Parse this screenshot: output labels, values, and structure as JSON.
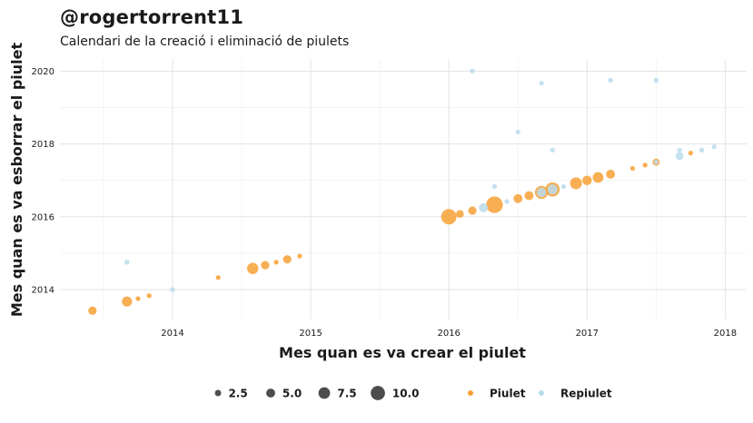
{
  "header": {
    "title": "@rogertorrent11",
    "subtitle": "Calendari de la creació i eliminació de piulets"
  },
  "colors": {
    "piulet": "#f7a035",
    "repiulet": "#b9dceb",
    "grid": "#e3e3e3",
    "size_legend": "#3a3a3a"
  },
  "chart_data": {
    "type": "scatter",
    "xlabel": "Mes quan es va crear el piulet",
    "ylabel": "Mes quan es va esborrar el piulet",
    "xlim": [
      2013.3,
      2018.15
    ],
    "ylim": [
      2013.3,
      2020.3
    ],
    "xticks": [
      2014,
      2015,
      2016,
      2017,
      2018
    ],
    "yticks": [
      2014,
      2016,
      2018,
      2020
    ],
    "grid": true,
    "legend_position": "bottom",
    "size_legend": {
      "title": "",
      "values": [
        2.5,
        5.0,
        7.5,
        10.0
      ],
      "labels": [
        "2.5",
        "5.0",
        "7.5",
        "10.0"
      ]
    },
    "series": [
      {
        "name": "Piulet",
        "color": "#f7a035",
        "points": [
          {
            "x": 2013.42,
            "y": 2013.42,
            "size": 4
          },
          {
            "x": 2013.67,
            "y": 2013.67,
            "size": 5.5
          },
          {
            "x": 2013.75,
            "y": 2013.75,
            "size": 1
          },
          {
            "x": 2013.83,
            "y": 2013.83,
            "size": 1
          },
          {
            "x": 2014.33,
            "y": 2014.33,
            "size": 1
          },
          {
            "x": 2014.58,
            "y": 2014.58,
            "size": 6.5
          },
          {
            "x": 2014.67,
            "y": 2014.67,
            "size": 4
          },
          {
            "x": 2014.75,
            "y": 2014.75,
            "size": 1
          },
          {
            "x": 2014.83,
            "y": 2014.83,
            "size": 4
          },
          {
            "x": 2014.92,
            "y": 2014.92,
            "size": 1
          },
          {
            "x": 2016.0,
            "y": 2016.0,
            "size": 10
          },
          {
            "x": 2016.08,
            "y": 2016.08,
            "size": 3.5
          },
          {
            "x": 2016.17,
            "y": 2016.17,
            "size": 4
          },
          {
            "x": 2016.33,
            "y": 2016.33,
            "size": 11
          },
          {
            "x": 2016.5,
            "y": 2016.5,
            "size": 4.5
          },
          {
            "x": 2016.58,
            "y": 2016.58,
            "size": 4.5
          },
          {
            "x": 2016.67,
            "y": 2016.67,
            "size": 8
          },
          {
            "x": 2016.75,
            "y": 2016.75,
            "size": 9
          },
          {
            "x": 2016.92,
            "y": 2016.92,
            "size": 7
          },
          {
            "x": 2017.0,
            "y": 2017.0,
            "size": 5
          },
          {
            "x": 2017.08,
            "y": 2017.08,
            "size": 6
          },
          {
            "x": 2017.17,
            "y": 2017.17,
            "size": 4.5
          },
          {
            "x": 2017.33,
            "y": 2017.33,
            "size": 1
          },
          {
            "x": 2017.42,
            "y": 2017.42,
            "size": 1
          },
          {
            "x": 2017.5,
            "y": 2017.5,
            "size": 3
          },
          {
            "x": 2017.75,
            "y": 2017.75,
            "size": 1
          }
        ]
      },
      {
        "name": "Repiulet",
        "color": "#b9dceb",
        "points": [
          {
            "x": 2013.67,
            "y": 2014.75,
            "size": 1
          },
          {
            "x": 2014.0,
            "y": 2014.0,
            "size": 1
          },
          {
            "x": 2016.17,
            "y": 2020.0,
            "size": 1
          },
          {
            "x": 2016.25,
            "y": 2016.25,
            "size": 4.5
          },
          {
            "x": 2016.33,
            "y": 2016.83,
            "size": 1
          },
          {
            "x": 2016.42,
            "y": 2016.42,
            "size": 1
          },
          {
            "x": 2016.5,
            "y": 2018.33,
            "size": 1
          },
          {
            "x": 2016.67,
            "y": 2019.67,
            "size": 1
          },
          {
            "x": 2016.67,
            "y": 2016.67,
            "size": 5
          },
          {
            "x": 2016.75,
            "y": 2017.83,
            "size": 1
          },
          {
            "x": 2016.75,
            "y": 2016.75,
            "size": 5.5
          },
          {
            "x": 2016.83,
            "y": 2016.83,
            "size": 1
          },
          {
            "x": 2017.17,
            "y": 2019.75,
            "size": 1
          },
          {
            "x": 2017.5,
            "y": 2019.75,
            "size": 1
          },
          {
            "x": 2017.5,
            "y": 2017.5,
            "size": 1
          },
          {
            "x": 2017.67,
            "y": 2017.67,
            "size": 3.5
          },
          {
            "x": 2017.67,
            "y": 2017.83,
            "size": 1
          },
          {
            "x": 2017.83,
            "y": 2017.83,
            "size": 1
          },
          {
            "x": 2017.92,
            "y": 2017.92,
            "size": 1
          }
        ]
      }
    ]
  }
}
